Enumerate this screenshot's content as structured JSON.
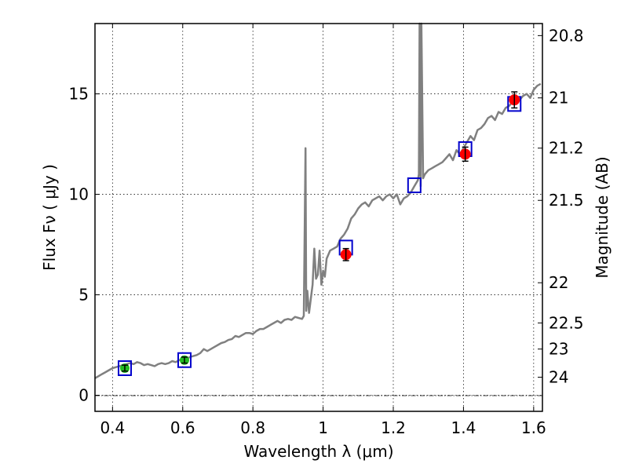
{
  "chart_data": {
    "type": "line",
    "xlabel": "Wavelength  λ (μm)",
    "ylabel": "Flux  Fν ( μJy )",
    "right_ylabel": "Magnitude (AB)",
    "xlim": [
      0.35,
      1.625
    ],
    "ylim": [
      -0.8,
      18.5
    ],
    "grid": true,
    "x_ticks": [
      {
        "value": 0.4,
        "label": "0.4"
      },
      {
        "value": 0.6,
        "label": "0.6"
      },
      {
        "value": 0.8,
        "label": "0.8"
      },
      {
        "value": 1.0,
        "label": "1"
      },
      {
        "value": 1.2,
        "label": "1.2"
      },
      {
        "value": 1.4,
        "label": "1.4"
      },
      {
        "value": 1.6,
        "label": "1.6"
      }
    ],
    "y_ticks": [
      {
        "value": 0,
        "label": "0"
      },
      {
        "value": 5,
        "label": "5"
      },
      {
        "value": 10,
        "label": "10"
      },
      {
        "value": 15,
        "label": "15"
      }
    ],
    "right_ticks": [
      {
        "flux": 17.9,
        "label": "20.8"
      },
      {
        "flux": 14.8,
        "label": "21"
      },
      {
        "flux": 12.3,
        "label": "21.2"
      },
      {
        "flux": 9.7,
        "label": "21.5"
      },
      {
        "flux": 5.6,
        "label": "22"
      },
      {
        "flux": 3.6,
        "label": "22.5"
      },
      {
        "flux": 2.3,
        "label": "23"
      },
      {
        "flux": 0.9,
        "label": "24"
      }
    ],
    "spectrum": {
      "color": "#808080",
      "x": [
        0.35,
        0.36,
        0.37,
        0.38,
        0.39,
        0.4,
        0.41,
        0.42,
        0.43,
        0.44,
        0.45,
        0.46,
        0.47,
        0.48,
        0.49,
        0.5,
        0.51,
        0.52,
        0.53,
        0.54,
        0.55,
        0.56,
        0.57,
        0.58,
        0.59,
        0.6,
        0.61,
        0.62,
        0.63,
        0.64,
        0.65,
        0.66,
        0.67,
        0.68,
        0.69,
        0.7,
        0.71,
        0.72,
        0.73,
        0.74,
        0.75,
        0.76,
        0.77,
        0.78,
        0.79,
        0.8,
        0.81,
        0.82,
        0.83,
        0.84,
        0.85,
        0.86,
        0.87,
        0.88,
        0.89,
        0.9,
        0.91,
        0.92,
        0.93,
        0.94,
        0.945,
        0.95,
        0.952,
        0.955,
        0.96,
        0.97,
        0.975,
        0.98,
        0.985,
        0.99,
        0.995,
        1.0,
        1.005,
        1.01,
        1.02,
        1.03,
        1.04,
        1.05,
        1.06,
        1.07,
        1.08,
        1.09,
        1.1,
        1.11,
        1.12,
        1.13,
        1.14,
        1.15,
        1.16,
        1.17,
        1.18,
        1.19,
        1.2,
        1.21,
        1.22,
        1.23,
        1.24,
        1.25,
        1.26,
        1.27,
        1.273,
        1.275,
        1.278,
        1.28,
        1.285,
        1.29,
        1.3,
        1.31,
        1.32,
        1.33,
        1.34,
        1.35,
        1.36,
        1.37,
        1.38,
        1.39,
        1.4,
        1.41,
        1.42,
        1.43,
        1.44,
        1.45,
        1.46,
        1.47,
        1.48,
        1.49,
        1.5,
        1.51,
        1.52,
        1.53,
        1.54,
        1.55,
        1.56,
        1.57,
        1.58,
        1.59,
        1.6,
        1.61,
        1.62
      ],
      "y": [
        0.85,
        0.95,
        1.05,
        1.15,
        1.25,
        1.35,
        1.4,
        1.45,
        1.5,
        1.55,
        1.6,
        1.55,
        1.65,
        1.6,
        1.5,
        1.55,
        1.5,
        1.45,
        1.55,
        1.6,
        1.55,
        1.6,
        1.7,
        1.65,
        1.75,
        1.8,
        1.8,
        1.9,
        1.95,
        2.0,
        2.1,
        2.3,
        2.2,
        2.3,
        2.4,
        2.5,
        2.6,
        2.65,
        2.75,
        2.8,
        2.95,
        2.9,
        3.0,
        3.1,
        3.1,
        3.05,
        3.2,
        3.3,
        3.3,
        3.4,
        3.5,
        3.6,
        3.7,
        3.6,
        3.75,
        3.8,
        3.75,
        3.9,
        3.85,
        3.8,
        3.95,
        12.3,
        4.2,
        5.2,
        4.1,
        5.5,
        7.3,
        5.8,
        6.0,
        7.2,
        5.5,
        6.2,
        5.9,
        6.8,
        7.2,
        7.3,
        7.4,
        7.8,
        8.0,
        8.3,
        8.8,
        9.0,
        9.3,
        9.5,
        9.6,
        9.4,
        9.7,
        9.8,
        9.9,
        9.7,
        9.9,
        10.0,
        9.8,
        10.0,
        9.5,
        9.8,
        9.9,
        10.1,
        10.4,
        10.7,
        11.0,
        18.5,
        10.4,
        18.5,
        10.8,
        11.0,
        11.2,
        11.3,
        11.4,
        11.5,
        11.6,
        11.8,
        12.0,
        11.7,
        12.2,
        12.0,
        12.3,
        12.6,
        12.9,
        12.7,
        13.2,
        13.3,
        13.5,
        13.8,
        13.9,
        13.7,
        14.1,
        14.0,
        14.3,
        14.4,
        14.6,
        14.5,
        14.7,
        14.9,
        15.0,
        14.8,
        15.2,
        15.4,
        15.5
      ]
    },
    "model_points": {
      "color": "#0000cc",
      "x": [
        0.435,
        0.605,
        1.065,
        1.26,
        1.405,
        1.545
      ],
      "y": [
        1.35,
        1.75,
        7.35,
        10.45,
        12.25,
        14.5
      ]
    },
    "observed_optical": {
      "color": "#22bb22",
      "x": [
        0.435,
        0.605
      ],
      "y": [
        1.35,
        1.75
      ],
      "err": [
        0.15,
        0.15
      ]
    },
    "observed_nir": {
      "color": "#ff0000",
      "x": [
        1.065,
        1.405,
        1.545
      ],
      "y": [
        7.0,
        12.0,
        14.7
      ],
      "err": [
        0.3,
        0.35,
        0.4
      ]
    }
  }
}
